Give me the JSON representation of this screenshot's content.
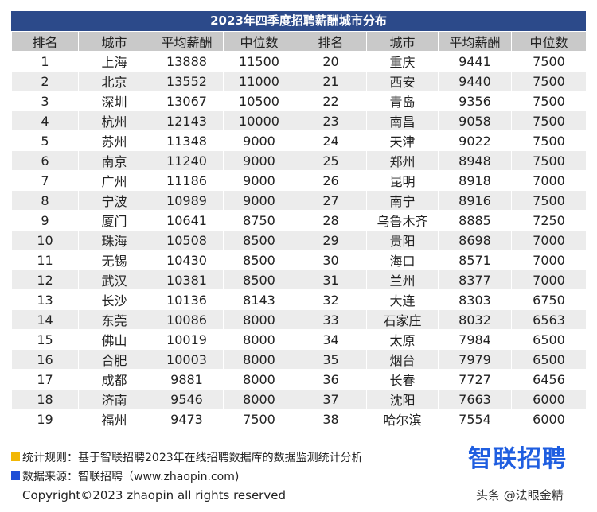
{
  "table": {
    "title": "2023年四季度招聘薪酬城市分布",
    "header": [
      "排名",
      "城市",
      "平均薪酬",
      "中位数",
      "排名",
      "城市",
      "平均薪酬",
      "中位数"
    ],
    "rows": [
      [
        1,
        "上海",
        13888,
        11500,
        20,
        "重庆",
        9441,
        7500
      ],
      [
        2,
        "北京",
        13552,
        11000,
        21,
        "西安",
        9440,
        7500
      ],
      [
        3,
        "深圳",
        13067,
        10500,
        22,
        "青岛",
        9356,
        7500
      ],
      [
        4,
        "杭州",
        12143,
        10000,
        23,
        "南昌",
        9058,
        7500
      ],
      [
        5,
        "苏州",
        11348,
        9000,
        24,
        "天津",
        9022,
        7500
      ],
      [
        6,
        "南京",
        11240,
        9000,
        25,
        "郑州",
        8948,
        7500
      ],
      [
        7,
        "广州",
        11186,
        9000,
        26,
        "昆明",
        8918,
        7000
      ],
      [
        8,
        "宁波",
        10989,
        9000,
        27,
        "南宁",
        8916,
        7500
      ],
      [
        9,
        "厦门",
        10641,
        8750,
        28,
        "乌鲁木齐",
        8885,
        7250
      ],
      [
        10,
        "珠海",
        10508,
        8500,
        29,
        "贵阳",
        8698,
        7000
      ],
      [
        11,
        "无锡",
        10430,
        8500,
        30,
        "海口",
        8571,
        7000
      ],
      [
        12,
        "武汉",
        10381,
        8500,
        31,
        "兰州",
        8377,
        7000
      ],
      [
        13,
        "长沙",
        10136,
        8143,
        32,
        "大连",
        8303,
        6750
      ],
      [
        14,
        "东莞",
        10086,
        8000,
        33,
        "石家庄",
        8032,
        6563
      ],
      [
        15,
        "佛山",
        10019,
        8000,
        34,
        "太原",
        7984,
        6500
      ],
      [
        16,
        "合肥",
        10003,
        8000,
        35,
        "烟台",
        7979,
        6500
      ],
      [
        17,
        "成都",
        9881,
        8000,
        36,
        "长春",
        7727,
        6456
      ],
      [
        18,
        "济南",
        9546,
        8000,
        37,
        "沈阳",
        7663,
        6000
      ],
      [
        19,
        "福州",
        9473,
        7500,
        38,
        "哈尔滨",
        7554,
        6000
      ]
    ]
  },
  "footer": {
    "rule": "统计规则：基于智联招聘2023年在线招聘数据库的数据监测统计分析",
    "source": "数据来源：智联招聘（www.zhaopin.com)",
    "logo": "智联招聘",
    "copyright": "Copyright©2023 zhaopin all rights reserved",
    "watermark": "头条 @法眼金精"
  }
}
